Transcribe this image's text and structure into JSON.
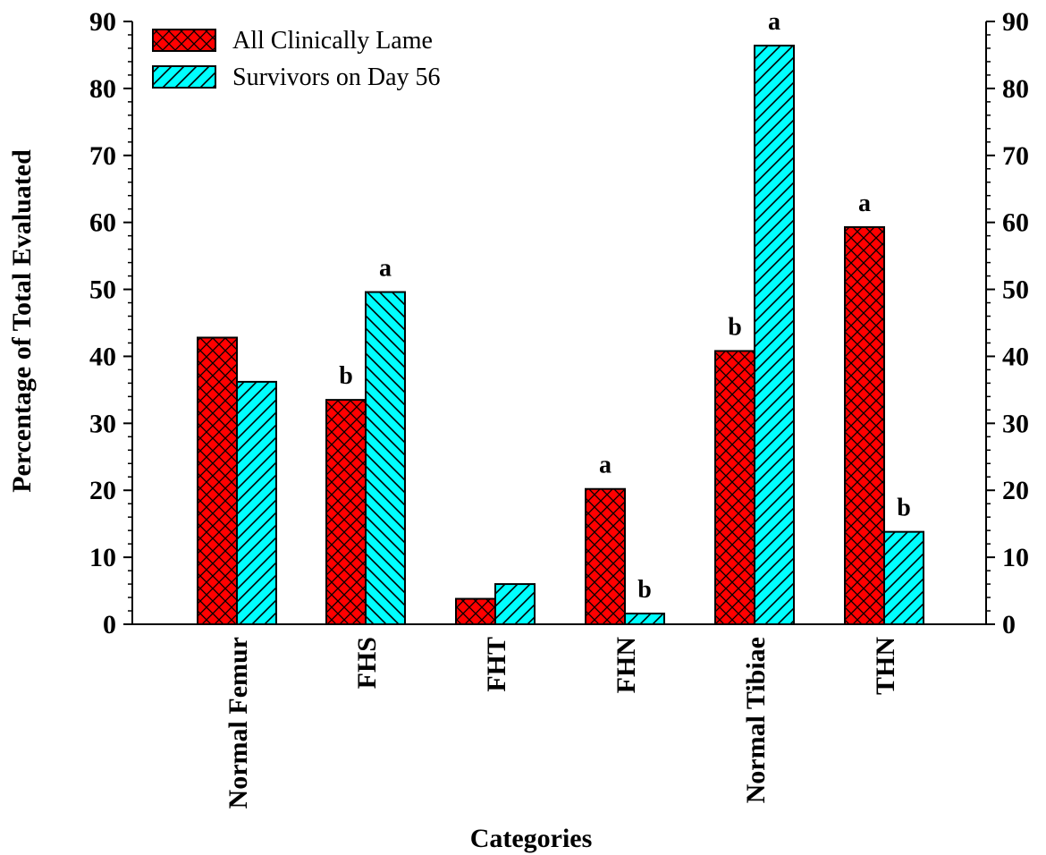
{
  "chart_data": {
    "type": "bar",
    "categories": [
      "Normal Femur",
      "FHS",
      "FHT",
      "FHN",
      "Normal Tibiae",
      "THN"
    ],
    "series": [
      {
        "name": "All Clinically Lame",
        "values": [
          42.8,
          33.5,
          3.8,
          20.2,
          40.8,
          59.3
        ],
        "labels": [
          "",
          "b",
          "",
          "a",
          "b",
          "a"
        ],
        "color": "#ff0000",
        "pattern": "crosshatch"
      },
      {
        "name": "Survivors on Day 56",
        "values": [
          36.2,
          49.6,
          6.0,
          1.6,
          86.4,
          13.8
        ],
        "labels": [
          "",
          "a",
          "",
          "b",
          "a",
          "b"
        ],
        "color": "#00ffff",
        "pattern": "diagonal"
      }
    ],
    "xlabel": "Categories",
    "ylabel": "Percentage of Total Evaluated",
    "ylim": [
      0,
      90
    ],
    "yticks": [
      0,
      10,
      20,
      30,
      40,
      50,
      60,
      70,
      80,
      90
    ],
    "right_axis_mirror": true,
    "grid": false,
    "legend_position": "top-left"
  }
}
